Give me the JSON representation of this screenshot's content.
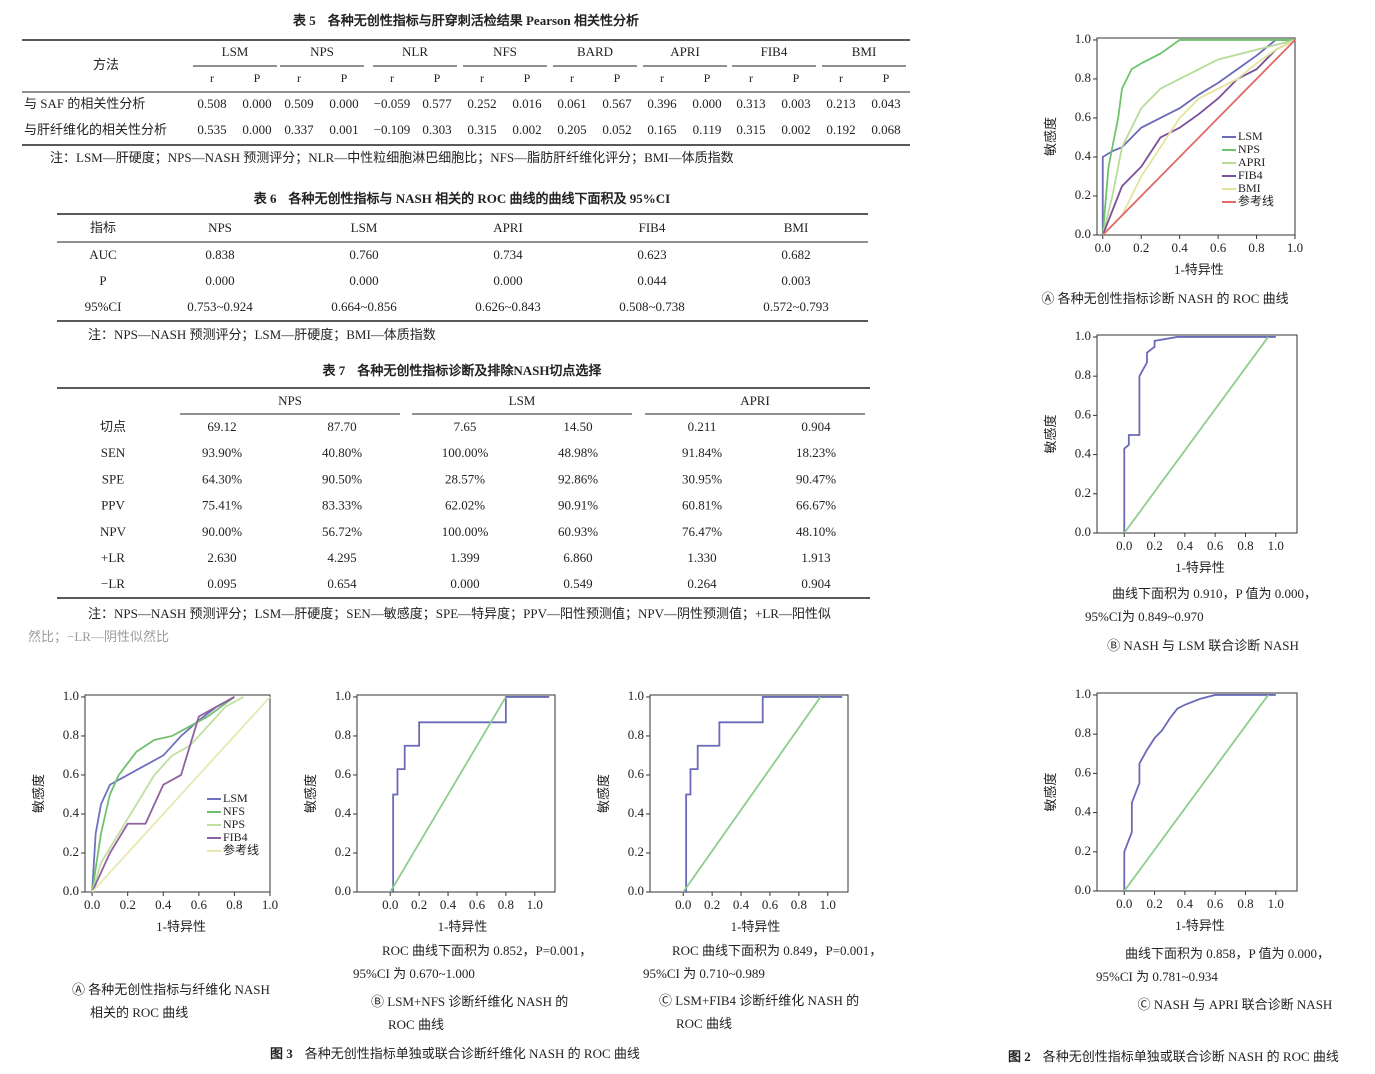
{
  "table5": {
    "label": "表 5",
    "title": "各种无创性指标与肝穿刺活检结果 Pearson 相关性分析",
    "method": "方法",
    "groups": [
      "LSM",
      "NPS",
      "NLR",
      "NFS",
      "BARD",
      "APRI",
      "FIB4",
      "BMI"
    ],
    "sub": [
      "r",
      "P"
    ],
    "rows": [
      {
        "label": "与 SAF 的相关性分析",
        "cells": [
          "0.508",
          "0.000",
          "0.509",
          "0.000",
          "−0.059",
          "0.577",
          "0.252",
          "0.016",
          "0.061",
          "0.567",
          "0.396",
          "0.000",
          "0.313",
          "0.003",
          "0.213",
          "0.043"
        ]
      },
      {
        "label": "与肝纤维化的相关性分析",
        "cells": [
          "0.535",
          "0.000",
          "0.337",
          "0.001",
          "−0.109",
          "0.303",
          "0.315",
          "0.002",
          "0.205",
          "0.052",
          "0.165",
          "0.119",
          "0.315",
          "0.002",
          "0.192",
          "0.068"
        ]
      }
    ],
    "note": "注：LSM—肝硬度；NPS—NASH 预测评分；NLR—中性粒细胞淋巴细胞比；NFS—脂肪肝纤维化评分；BMI—体质指数"
  },
  "table6": {
    "label": "表 6",
    "title": "各种无创性指标与 NASH 相关的 ROC 曲线的曲线下面积及 95%CI",
    "header": [
      "指标",
      "NPS",
      "LSM",
      "APRI",
      "FIB4",
      "BMI"
    ],
    "rows": [
      [
        "AUC",
        "0.838",
        "0.760",
        "0.734",
        "0.623",
        "0.682"
      ],
      [
        "P",
        "0.000",
        "0.000",
        "0.000",
        "0.044",
        "0.003"
      ],
      [
        "95%CI",
        "0.753~0.924",
        "0.664~0.856",
        "0.626~0.843",
        "0.508~0.738",
        "0.572~0.793"
      ]
    ],
    "note": "注：NPS—NASH 预测评分；LSM—肝硬度；BMI—体质指数"
  },
  "table7": {
    "label": "表 7",
    "title": "各种无创性指标诊断及排除NASH切点选择",
    "groups": [
      "NPS",
      "LSM",
      "APRI"
    ],
    "rows": [
      [
        "切点",
        "69.12",
        "87.70",
        "7.65",
        "14.50",
        "0.211",
        "0.904"
      ],
      [
        "SEN",
        "93.90%",
        "40.80%",
        "100.00%",
        "48.98%",
        "91.84%",
        "18.23%"
      ],
      [
        "SPE",
        "64.30%",
        "90.50%",
        "28.57%",
        "92.86%",
        "30.95%",
        "90.47%"
      ],
      [
        "PPV",
        "75.41%",
        "83.33%",
        "62.02%",
        "90.91%",
        "60.81%",
        "66.67%"
      ],
      [
        "NPV",
        "90.00%",
        "56.72%",
        "100.00%",
        "60.93%",
        "76.47%",
        "48.10%"
      ],
      [
        "+LR",
        "2.630",
        "4.295",
        "1.399",
        "6.860",
        "1.330",
        "1.913"
      ],
      [
        "−LR",
        "0.095",
        "0.654",
        "0.000",
        "0.549",
        "0.264",
        "0.904"
      ]
    ],
    "note": [
      "注：NPS—NASH 预测评分；LSM—肝硬度；SEN—敏感度；SPE—特异度；PPV—阳性预测值；NPV—阴性预测值；+LR—阳性似",
      "然比；−LR—阴性似然比"
    ]
  },
  "roc_axis": {
    "xlabel": "1-特异性",
    "ylabel": "敏感度",
    "ticks": [
      {
        "value": 0,
        "label": "0.0"
      },
      {
        "value": 0.2,
        "label": "0.2"
      },
      {
        "value": 0.4,
        "label": "0.4"
      },
      {
        "value": 0.6,
        "label": "0.6"
      },
      {
        "value": 0.8,
        "label": "0.8"
      },
      {
        "value": 1,
        "label": "1.0"
      }
    ]
  },
  "figure2": {
    "label": "图 2",
    "caption": "各种无创性指标单独或联合诊断 NASH 的 ROC 曲线",
    "panels": [
      {
        "label": [
          "Ⓐ 各种无创性指标诊断 NASH 的 ROC 曲线"
        ],
        "annotation": [],
        "chart_data": {
          "type": "line",
          "xlim": [
            -0.03,
            1
          ],
          "ylim": [
            0,
            1.01
          ],
          "series": [
            {
              "name": "LSM",
              "color": "#6a6ab8",
              "x": [
                0,
                0,
                0.05,
                0.1,
                0.15,
                0.2,
                0.3,
                0.4,
                0.5,
                0.6,
                0.7,
                0.8,
                0.9,
                1
              ],
              "values": [
                0,
                0.4,
                0.43,
                0.45,
                0.5,
                0.55,
                0.6,
                0.65,
                0.72,
                0.78,
                0.85,
                0.92,
                1,
                1
              ]
            },
            {
              "name": "NPS",
              "color": "#6cc46c",
              "x": [
                0,
                0.03,
                0.08,
                0.1,
                0.15,
                0.2,
                0.3,
                0.4,
                0.5,
                0.7,
                1
              ],
              "values": [
                0,
                0.35,
                0.6,
                0.75,
                0.85,
                0.88,
                0.93,
                1,
                1,
                1,
                1
              ]
            },
            {
              "name": "APRI",
              "color": "#b8dc98",
              "x": [
                0,
                0.05,
                0.1,
                0.2,
                0.3,
                0.4,
                0.5,
                0.6,
                0.8,
                1
              ],
              "values": [
                0,
                0.2,
                0.45,
                0.65,
                0.75,
                0.8,
                0.85,
                0.9,
                0.95,
                1
              ]
            },
            {
              "name": "FIB4",
              "color": "#7a4f9c",
              "x": [
                0,
                0.1,
                0.2,
                0.3,
                0.4,
                0.5,
                0.6,
                0.7,
                0.8,
                0.9,
                1
              ],
              "values": [
                0,
                0.25,
                0.35,
                0.5,
                0.55,
                0.62,
                0.7,
                0.8,
                0.85,
                0.95,
                1
              ]
            },
            {
              "name": "BMI",
              "color": "#e4e49c",
              "x": [
                0,
                0.1,
                0.2,
                0.3,
                0.4,
                0.5,
                0.6,
                0.7,
                0.8,
                0.9,
                1
              ],
              "values": [
                0,
                0.1,
                0.3,
                0.45,
                0.6,
                0.7,
                0.75,
                0.8,
                0.88,
                0.95,
                1
              ]
            },
            {
              "name": "参考线",
              "color": "#e06a6a",
              "x": [
                0,
                1
              ],
              "values": [
                0,
                1
              ]
            }
          ]
        }
      },
      {
        "label": [
          "Ⓑ NASH 与 LSM 联合诊断 NASH"
        ],
        "annotation": [
          "曲线下面积为 0.910，P 值为 0.000，",
          "95%CI为 0.849~0.970"
        ],
        "chart_data": {
          "type": "line",
          "xlim": [
            -0.18,
            1.14
          ],
          "ylim": [
            0,
            1.01
          ],
          "series": [
            {
              "color": "#6a6ab8",
              "x": [
                0,
                0,
                0.03,
                0.03,
                0.1,
                0.1,
                0.15,
                0.15,
                0.2,
                0.2,
                0.35,
                0.6,
                1
              ],
              "values": [
                0,
                0.43,
                0.45,
                0.5,
                0.5,
                0.8,
                0.87,
                0.92,
                0.95,
                0.98,
                1,
                1,
                1
              ]
            },
            {
              "color": "#8fcc8f",
              "x": [
                0,
                0.95
              ],
              "values": [
                0,
                1
              ]
            }
          ]
        }
      },
      {
        "label": [
          "Ⓒ NASH 与 APRI 联合诊断 NASH"
        ],
        "annotation": [
          "曲线下面积为 0.858，P 值为 0.000，",
          "95%CI 为 0.781~0.934"
        ],
        "chart_data": {
          "type": "line",
          "xlim": [
            -0.18,
            1.14
          ],
          "ylim": [
            0,
            1.01
          ],
          "series": [
            {
              "color": "#6a6ab8",
              "x": [
                0,
                0,
                0.05,
                0.05,
                0.1,
                0.1,
                0.15,
                0.2,
                0.25,
                0.3,
                0.35,
                0.4,
                0.5,
                0.6,
                0.8,
                1
              ],
              "values": [
                0,
                0.2,
                0.3,
                0.45,
                0.55,
                0.65,
                0.72,
                0.78,
                0.82,
                0.88,
                0.93,
                0.95,
                0.98,
                1,
                1,
                1
              ]
            },
            {
              "color": "#8fcc8f",
              "x": [
                0,
                0.95
              ],
              "values": [
                0,
                1
              ]
            }
          ]
        }
      }
    ]
  },
  "figure3": {
    "label": "图 3",
    "caption": "各种无创性指标单独或联合诊断纤维化 NASH 的 ROC 曲线",
    "panels": [
      {
        "label": [
          "Ⓐ 各种无创性指标与纤维化 NASH",
          "相关的 ROC 曲线"
        ],
        "annotation": [],
        "chart_data": {
          "type": "line",
          "xlim": [
            -0.04,
            1
          ],
          "ylim": [
            0,
            1.01
          ],
          "series": [
            {
              "name": "LSM",
              "color": "#7070c0",
              "x": [
                0,
                0.02,
                0.05,
                0.1,
                0.2,
                0.3,
                0.4,
                0.5,
                0.6,
                0.7,
                0.8
              ],
              "values": [
                0,
                0.3,
                0.45,
                0.55,
                0.6,
                0.65,
                0.7,
                0.8,
                0.88,
                0.95,
                1
              ]
            },
            {
              "name": "NFS",
              "color": "#70c070",
              "x": [
                0,
                0.05,
                0.1,
                0.15,
                0.25,
                0.35,
                0.45,
                0.55,
                0.65,
                0.8
              ],
              "values": [
                0,
                0.3,
                0.5,
                0.6,
                0.72,
                0.78,
                0.8,
                0.85,
                0.9,
                1
              ]
            },
            {
              "name": "NPS",
              "color": "#bfe0a0",
              "x": [
                0,
                0.05,
                0.15,
                0.25,
                0.35,
                0.45,
                0.55,
                0.65,
                0.75,
                0.85
              ],
              "values": [
                0,
                0.15,
                0.3,
                0.45,
                0.6,
                0.7,
                0.75,
                0.85,
                0.95,
                1
              ]
            },
            {
              "name": "FIB4",
              "color": "#9060a0",
              "x": [
                0,
                0.05,
                0.1,
                0.2,
                0.3,
                0.4,
                0.5,
                0.6,
                0.7,
                0.8
              ],
              "values": [
                0,
                0.1,
                0.2,
                0.35,
                0.35,
                0.55,
                0.6,
                0.9,
                0.95,
                1
              ]
            },
            {
              "name": "参考线",
              "color": "#e8e8b0",
              "x": [
                0,
                1
              ],
              "values": [
                0,
                1
              ]
            }
          ]
        }
      },
      {
        "label": [
          "Ⓑ LSM+NFS 诊断纤维化 NASH 的",
          "ROC 曲线"
        ],
        "annotation": [
          "ROC 曲线下面积为 0.852，P=0.001，",
          "95%CI 为 0.670~1.000"
        ],
        "chart_data": {
          "type": "line",
          "xlim": [
            -0.23,
            1.14
          ],
          "ylim": [
            0,
            1.01
          ],
          "series": [
            {
              "color": "#6a6ab8",
              "x": [
                0,
                0.02,
                0.02,
                0.05,
                0.05,
                0.1,
                0.1,
                0.2,
                0.2,
                0.8,
                0.8,
                1.1
              ],
              "values": [
                0,
                0,
                0.5,
                0.5,
                0.63,
                0.63,
                0.75,
                0.75,
                0.87,
                0.87,
                1,
                1
              ]
            },
            {
              "color": "#8fcc8f",
              "x": [
                0,
                0.8
              ],
              "values": [
                0,
                1
              ]
            }
          ]
        }
      },
      {
        "label": [
          "Ⓒ LSM+FIB4 诊断纤维化 NASH 的",
          "ROC 曲线"
        ],
        "annotation": [
          "ROC 曲线下面积为 0.849，P=0.001，",
          "95%CI 为 0.710~0.989"
        ],
        "chart_data": {
          "type": "line",
          "xlim": [
            -0.23,
            1.14
          ],
          "ylim": [
            0,
            1.01
          ],
          "series": [
            {
              "color": "#6a6ab8",
              "x": [
                0,
                0.02,
                0.02,
                0.05,
                0.05,
                0.1,
                0.1,
                0.25,
                0.25,
                0.55,
                0.55,
                1.1
              ],
              "values": [
                0,
                0,
                0.5,
                0.5,
                0.63,
                0.63,
                0.75,
                0.75,
                0.87,
                0.87,
                1,
                1
              ]
            },
            {
              "color": "#8fcc8f",
              "x": [
                0,
                0.95
              ],
              "values": [
                0,
                1
              ]
            }
          ]
        }
      }
    ]
  }
}
